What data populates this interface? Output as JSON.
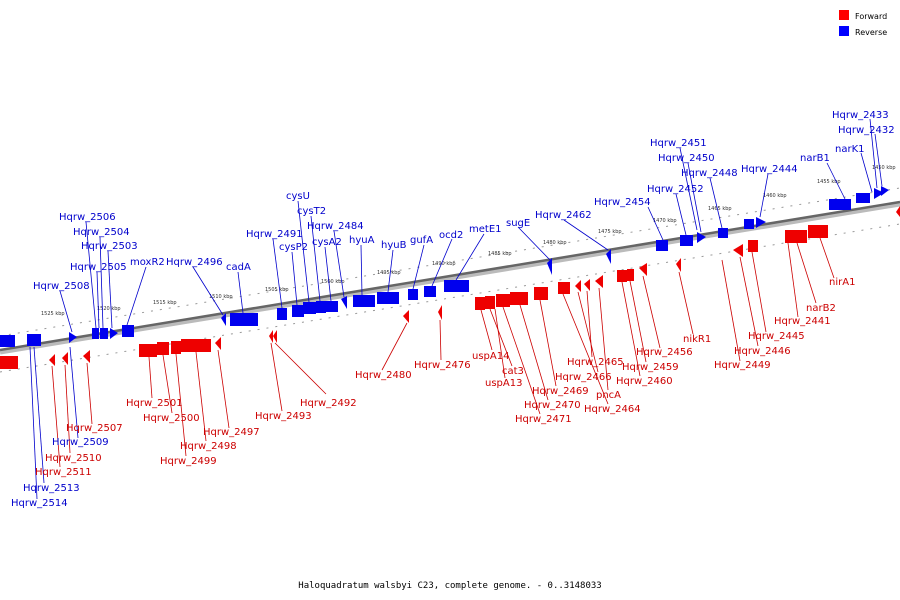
{
  "legend": {
    "forward": {
      "label": "Forward",
      "color": "#ff0000"
    },
    "reverse": {
      "label": "Reverse",
      "color": "#0000ff"
    }
  },
  "caption": "Haloquadratum walsbyi C23, complete genome. - 0..3148033",
  "ticks": [
    "1450 kbp",
    "1455 kbp",
    "1460 kbp",
    "1465 kbp",
    "1470 kbp",
    "1475 kbp",
    "1480 kbp",
    "1485 kbp",
    "1490 kbp",
    "1495 kbp",
    "1500 kbp",
    "1505 kbp",
    "1510 kbp",
    "1515 kbp",
    "1520 kbp",
    "1525 kbp"
  ],
  "reverse_labels": [
    "Hqrw_2433",
    "Hqrw_2432",
    "narK1",
    "narB1",
    "Hqrw_2451",
    "Hqrw_2450",
    "Hqrw_2448",
    "Hqrw_2444",
    "Hqrw_2452",
    "Hqrw_2454",
    "Hqrw_2462",
    "sugE",
    "metE1",
    "ocd2",
    "gufA",
    "hyuB",
    "hyuA",
    "Hqrw_2484",
    "cysA2",
    "cysT2",
    "cysU",
    "cysP2",
    "Hqrw_2491",
    "cadA",
    "Hqrw_2496",
    "moxR2",
    "Hqrw_2506",
    "Hqrw_2504",
    "Hqrw_2503",
    "Hqrw_2505",
    "Hqrw_2508",
    "Hqrw_2509",
    "Hqrw_2513",
    "Hqrw_2514"
  ],
  "forward_labels": [
    "nirA1",
    "narB2",
    "Hqrw_2441",
    "Hqrw_2445",
    "Hqrw_2446",
    "Hqrw_2449",
    "nikR1",
    "Hqrw_2456",
    "Hqrw_2459",
    "Hqrw_2460",
    "Hqrw_2465",
    "Hqrw_2466",
    "pncA",
    "Hqrw_2464",
    "Hqrw_2469",
    "Hqrw_2470",
    "Hqrw_2471",
    "uspA14",
    "cat3",
    "uspA13",
    "Hqrw_2476",
    "Hqrw_2480",
    "Hqrw_2492",
    "Hqrw_2493",
    "Hqrw_2497",
    "Hqrw_2498",
    "Hqrw_2499",
    "Hqrw_2501",
    "Hqrw_2500",
    "Hqrw_2507",
    "Hqrw_2510",
    "Hqrw_2511"
  ]
}
